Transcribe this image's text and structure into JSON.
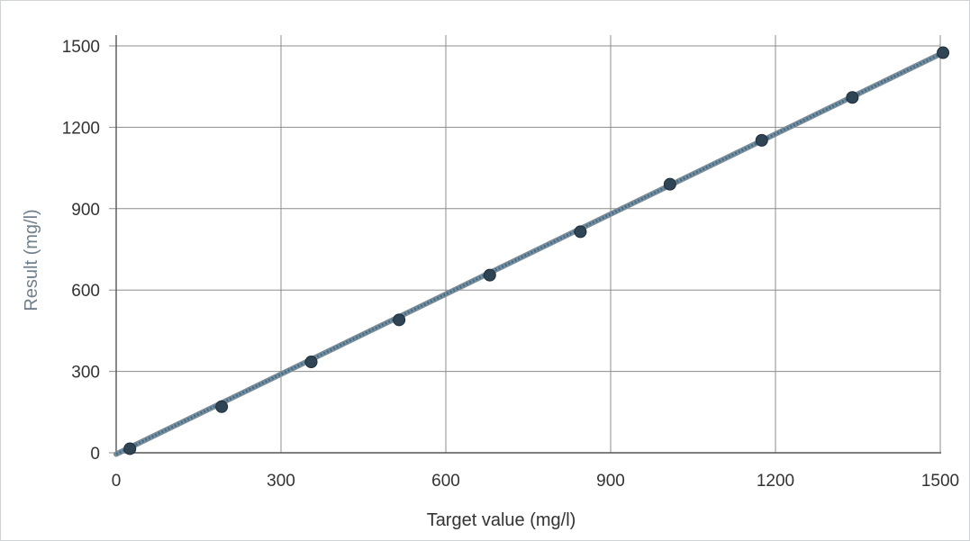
{
  "chart_data": {
    "type": "scatter",
    "title": "",
    "xlabel": "Target value (mg/l)",
    "ylabel": "Result (mg/l)",
    "xlim": [
      0,
      1500
    ],
    "ylim": [
      0,
      1500
    ],
    "xticks": [
      0,
      300,
      600,
      900,
      1200,
      1500
    ],
    "yticks": [
      0,
      300,
      600,
      900,
      1200,
      1500
    ],
    "grid": true,
    "legend": "none",
    "series": [
      {
        "type": "scatter",
        "color": "#2f4454",
        "points": [
          {
            "x": 25,
            "y": 15
          },
          {
            "x": 192,
            "y": 170
          },
          {
            "x": 355,
            "y": 335
          },
          {
            "x": 515,
            "y": 490
          },
          {
            "x": 680,
            "y": 655
          },
          {
            "x": 845,
            "y": 815
          },
          {
            "x": 1008,
            "y": 990
          },
          {
            "x": 1175,
            "y": 1152
          },
          {
            "x": 1340,
            "y": 1310
          },
          {
            "x": 1505,
            "y": 1475
          }
        ]
      },
      {
        "type": "line",
        "style": "dotted-regression",
        "color": "#3c6f8f",
        "points": [
          {
            "x": 0,
            "y": -5
          },
          {
            "x": 1505,
            "y": 1475
          }
        ]
      }
    ]
  }
}
